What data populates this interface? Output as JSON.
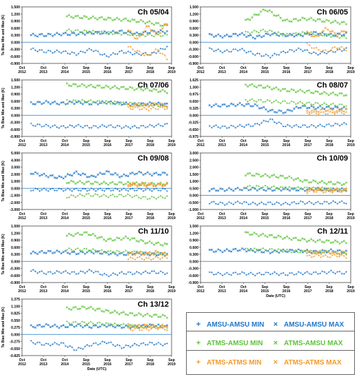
{
  "figure": {
    "ylabel": "Ta Bias Min and Max (K)",
    "xlabel": "Date (UTC)",
    "colors": {
      "amsu_amsu": "#1f77c8",
      "atms_amsu": "#5fc23c",
      "atms_atms": "#f39a2a"
    }
  },
  "legend": {
    "items": [
      {
        "marker": "+",
        "label": "AMSU-AMSU MIN",
        "color": "#1f77c8"
      },
      {
        "marker": "×",
        "label": "AMSU-AMSU MAX",
        "color": "#1f77c8"
      },
      {
        "marker": "+",
        "label": "ATMS-AMSU MIN",
        "color": "#5fc23c"
      },
      {
        "marker": "×",
        "label": "ATMS-AMSU MAX",
        "color": "#5fc23c"
      },
      {
        "marker": "+",
        "label": "ATMS-ATMS MIN",
        "color": "#f39a2a"
      },
      {
        "marker": "×",
        "label": "ATMS-ATMS MAX",
        "color": "#f39a2a"
      }
    ]
  },
  "chart_data": [
    {
      "type": "scatter",
      "title": "Ch 05/04",
      "xlabel": "",
      "ylabel": "Ta Bias Min and Max (K)",
      "show_ylabel": true,
      "ylim": [
        -0.9,
        1.5
      ],
      "yticks": [
        "1.500",
        "1.200",
        "0.900",
        "0.600",
        "0.300",
        "0.000",
        "-0.300",
        "-0.600",
        "-0.900"
      ],
      "xticks": [
        "Oct\n2012",
        "Oct\n2013",
        "Oct\n2014",
        "Sep\n2015",
        "Sep\n2016",
        "Sep\n2017",
        "Sep\n2018",
        "Sep\n2019"
      ],
      "series": {
        "aa_max": [
          0.3,
          0.3,
          0.35,
          0.35,
          0.4,
          0.4,
          0.45,
          0.35,
          0.45,
          0.45
        ],
        "aa_min": [
          -0.3,
          -0.4,
          -0.4,
          -0.5,
          -0.3,
          -0.6,
          -0.4,
          -0.5,
          -0.5,
          -0.2
        ],
        "am_max": [
          1.1,
          1.05,
          1.0,
          0.95,
          0.85,
          0.7
        ],
        "am_min": [
          0.5,
          0.45,
          0.4,
          0.35,
          0.3,
          0.3
        ],
        "tt_max": [
          0.5,
          0.1,
          0.7,
          0.3,
          0.8
        ],
        "tt_min": [
          -0.2,
          -0.4,
          -0.6,
          -0.3,
          -0.7
        ]
      }
    },
    {
      "type": "scatter",
      "title": "Ch 06/05",
      "xlabel": "",
      "ylabel": "",
      "show_ylabel": false,
      "ylim": [
        -0.9,
        1.5
      ],
      "yticks": [
        "1.500",
        "1.200",
        "0.900",
        "0.600",
        "0.300",
        "0.000",
        "-0.300",
        "-0.600",
        "-0.900"
      ],
      "xticks": [
        "Oct\n2012",
        "Oct\n2013",
        "Oct\n2014",
        "Sep\n2015",
        "Sep\n2016",
        "Sep\n2017",
        "Sep\n2018",
        "Sep\n2019"
      ],
      "series": {
        "aa_max": [
          0.3,
          0.25,
          0.35,
          0.2,
          0.35,
          0.3,
          0.3,
          0.4,
          0.3,
          0.35
        ],
        "aa_min": [
          -0.3,
          -0.4,
          -0.3,
          -0.5,
          -0.6,
          -0.4,
          -0.3,
          -0.5,
          -0.4,
          -0.3
        ],
        "am_max": [
          0.9,
          1.4,
          0.9,
          1.0,
          0.9,
          0.8
        ],
        "am_min": [
          0.4,
          0.5,
          0.3,
          0.4,
          0.3,
          0.2
        ],
        "tt_max": [
          0.4,
          0.2,
          0.6,
          0.3,
          0.5
        ],
        "tt_min": [
          -0.1,
          -0.3,
          -0.4,
          -0.2,
          -0.3
        ]
      }
    },
    {
      "type": "scatter",
      "title": "Ch 07/06",
      "xlabel": "",
      "ylabel": "Ta Bias Min and Max (K)",
      "show_ylabel": true,
      "ylim": [
        -0.9,
        1.5
      ],
      "yticks": [
        "1.500",
        "1.200",
        "0.900",
        "0.600",
        "0.300",
        "0.000",
        "-0.300",
        "-0.600",
        "-0.900"
      ],
      "xticks": [
        "Oct\n2012",
        "Oct\n2013",
        "Oct\n2014",
        "Sep\n2015",
        "Sep\n2016",
        "Sep\n2017",
        "Sep\n2018",
        "Sep\n2019"
      ],
      "series": {
        "aa_max": [
          0.5,
          0.55,
          0.5,
          0.55,
          0.5,
          0.55,
          0.5,
          0.45,
          0.5,
          0.45
        ],
        "aa_min": [
          -0.4,
          -0.45,
          -0.5,
          -0.45,
          -0.5,
          -0.45,
          -0.5,
          -0.5,
          -0.45,
          -0.4
        ],
        "am_max": [
          1.3,
          1.25,
          1.2,
          1.15,
          1.1,
          1.0
        ],
        "am_min": [
          0.6,
          0.6,
          0.55,
          0.5,
          0.45,
          0.4
        ],
        "tt_max": [
          0.4,
          0.45,
          0.4,
          0.5,
          0.4
        ],
        "tt_min": [
          0.3,
          0.3,
          0.25,
          0.3,
          0.3
        ]
      }
    },
    {
      "type": "scatter",
      "title": "Ch 08/07",
      "xlabel": "",
      "ylabel": "",
      "show_ylabel": false,
      "ylim": [
        -0.975,
        1.625
      ],
      "yticks": [
        "1.625",
        "1.300",
        "0.975",
        "0.650",
        "0.325",
        "0.000",
        "-0.325",
        "-0.650",
        "-0.975"
      ],
      "xticks": [
        "Oct\n2012",
        "Oct\n2013",
        "Oct\n2014",
        "Sep\n2015",
        "Sep\n2016",
        "Sep\n2017",
        "Sep\n2018",
        "Sep\n2019"
      ],
      "series": {
        "aa_max": [
          0.45,
          0.45,
          0.5,
          0.45,
          0.2,
          0.15,
          0.4,
          0.35,
          0.35,
          0.3
        ],
        "aa_min": [
          -0.5,
          -0.55,
          -0.5,
          -0.45,
          -0.2,
          -0.5,
          -0.5,
          -0.5,
          -0.45,
          -0.4
        ],
        "am_max": [
          1.4,
          1.3,
          1.15,
          1.1,
          1.0,
          0.95
        ],
        "am_min": [
          0.7,
          0.65,
          0.6,
          0.55,
          0.5,
          0.45
        ],
        "tt_max": [
          0.2,
          0.2,
          0.25,
          0.2,
          0.25
        ],
        "tt_min": [
          0.1,
          0.1,
          0.1,
          0.12,
          0.12
        ]
      }
    },
    {
      "type": "scatter",
      "title": "Ch 09/08",
      "xlabel": "",
      "ylabel": "Ta Bias Min and Max (K)",
      "show_ylabel": true,
      "ylim": [
        -3.0,
        5.0
      ],
      "yticks": [
        "5.000",
        "4.000",
        "3.000",
        "2.000",
        "1.000",
        "0.000",
        "-1.000",
        "-2.000",
        "-3.000"
      ],
      "xticks": [
        "Oct\n2012",
        "Oct\n2013",
        "Oct\n2014",
        "Sep\n2015",
        "Sep\n2016",
        "Sep\n2017",
        "Sep\n2018",
        "Sep\n2019"
      ],
      "series": {
        "aa_max": [
          2.2,
          1.8,
          1.5,
          2.2,
          1.6,
          2.3,
          1.7,
          2.2,
          2.0,
          2.1
        ],
        "aa_min": [
          -0.2,
          -0.2,
          -0.2,
          -0.2,
          -0.2,
          -0.2,
          -0.2,
          -0.2,
          -0.2,
          -0.2
        ],
        "am_max": [
          0.9,
          0.8,
          0.7,
          0.7,
          0.6,
          0.6
        ],
        "am_min": [
          -1.2,
          -0.9,
          -1.1,
          -1.0,
          -1.4,
          -1.2
        ],
        "tt_max": [
          0.6,
          0.6,
          0.6,
          0.5,
          0.6
        ],
        "tt_min": [
          0.4,
          0.4,
          0.4,
          0.4,
          0.4
        ]
      }
    },
    {
      "type": "scatter",
      "title": "Ch 10/09",
      "xlabel": "",
      "ylabel": "",
      "show_ylabel": false,
      "ylim": [
        -1.0,
        3.0
      ],
      "yticks": [
        "3.000",
        "2.500",
        "2.000",
        "1.500",
        "1.000",
        "0.500",
        "0.000",
        "-0.500",
        "-1.000"
      ],
      "xticks": [
        "Oct\n2012",
        "Oct\n2013",
        "Oct\n2014",
        "Sep\n2015",
        "Sep\n2016",
        "Sep\n2017",
        "Sep\n2018",
        "Sep\n2019"
      ],
      "series": {
        "aa_max": [
          0.4,
          0.4,
          0.45,
          0.45,
          0.4,
          0.45,
          0.4,
          0.45,
          0.4,
          0.4
        ],
        "aa_min": [
          -0.5,
          -0.6,
          -0.5,
          -0.6,
          -0.55,
          -0.6,
          -0.5,
          -0.55,
          -0.5,
          -0.5
        ],
        "am_max": [
          1.5,
          1.4,
          1.3,
          1.0,
          0.9,
          0.8
        ],
        "am_min": [
          0.6,
          0.6,
          0.5,
          0.5,
          0.45,
          0.4
        ],
        "tt_max": [
          0.4,
          0.45,
          0.4,
          0.4,
          0.4
        ],
        "tt_min": [
          0.25,
          0.3,
          0.25,
          0.3,
          0.3
        ]
      }
    },
    {
      "type": "scatter",
      "title": "Ch 11/10",
      "xlabel": "",
      "ylabel": "Ta Bias Min and Max (K)",
      "show_ylabel": true,
      "ylim": [
        -0.9,
        1.5
      ],
      "yticks": [
        "1.500",
        "1.200",
        "0.900",
        "0.600",
        "0.300",
        "0.000",
        "-0.300",
        "-0.600",
        "-0.900"
      ],
      "xticks": [
        "Oct\n2012",
        "Oct\n2013",
        "Oct\n2014",
        "Sep\n2015",
        "Sep\n2016",
        "Sep\n2017",
        "Sep\n2018",
        "Sep\n2019"
      ],
      "series": {
        "aa_max": [
          0.35,
          0.4,
          0.4,
          0.35,
          0.4,
          0.35,
          0.3,
          0.35,
          0.3,
          0.3
        ],
        "aa_min": [
          -0.4,
          -0.5,
          -0.45,
          -0.5,
          -0.4,
          -0.6,
          -0.5,
          -0.5,
          -0.45,
          -0.5
        ],
        "am_max": [
          1.1,
          1.2,
          0.9,
          1.0,
          0.8,
          0.7
        ],
        "am_min": [
          0.5,
          0.5,
          0.4,
          0.4,
          0.35,
          0.3
        ],
        "tt_max": [
          0.3,
          0.35,
          0.3,
          0.4,
          0.3
        ],
        "tt_min": [
          0.1,
          0.15,
          0.1,
          0.15,
          0.15
        ]
      }
    },
    {
      "type": "scatter",
      "title": "Ch 12/11",
      "xlabel": "Date (UTC)",
      "ylabel": "",
      "show_ylabel": false,
      "ylim": [
        -0.9,
        1.5
      ],
      "yticks": [
        "1.500",
        "1.200",
        "0.900",
        "0.600",
        "0.300",
        "0.000",
        "-0.300",
        "-0.600",
        "-0.900"
      ],
      "xticks": [
        "Oct\n2012",
        "Oct\n2013",
        "Oct\n2014",
        "Sep\n2015",
        "Sep\n2016",
        "Sep\n2017",
        "Sep\n2018",
        "Sep\n2019"
      ],
      "series": {
        "aa_max": [
          0.45,
          0.45,
          0.5,
          0.45,
          0.4,
          0.45,
          0.45,
          0.4,
          0.45,
          0.4
        ],
        "aa_min": [
          -0.5,
          -0.55,
          -0.5,
          -0.55,
          -0.5,
          -0.55,
          -0.5,
          -0.5,
          -0.45,
          -0.5
        ],
        "am_max": [
          1.2,
          1.1,
          1.0,
          0.9,
          0.85,
          0.8
        ],
        "am_min": [
          0.5,
          0.5,
          0.45,
          0.4,
          0.4,
          0.3
        ],
        "tt_max": [
          0.4,
          0.35,
          0.4,
          0.35,
          0.4
        ],
        "tt_min": [
          0.2,
          0.25,
          0.2,
          0.25,
          0.2
        ]
      }
    },
    {
      "type": "scatter",
      "title": "Ch 13/12",
      "xlabel": "Date (UTC)",
      "ylabel": "Ta Bias Min and Max (K)",
      "show_ylabel": true,
      "ylim": [
        -0.825,
        1.375
      ],
      "yticks": [
        "1.375",
        "1.100",
        "0.825",
        "0.550",
        "0.275",
        "0.000",
        "-0.275",
        "-0.550",
        "-0.825"
      ],
      "xticks": [
        "Oct\n2012",
        "Oct\n2013",
        "Oct\n2014",
        "Sep\n2015",
        "Sep\n2016",
        "Sep\n2017",
        "Sep\n2018",
        "Sep\n2019"
      ],
      "series": {
        "aa_max": [
          0.3,
          0.35,
          0.3,
          0.35,
          0.3,
          0.35,
          0.3,
          0.3,
          0.35,
          0.3
        ],
        "aa_min": [
          -0.3,
          -0.4,
          -0.35,
          -0.6,
          -0.4,
          -0.3,
          -0.5,
          -0.4,
          -0.35,
          -0.4
        ],
        "am_max": [
          1.0,
          1.05,
          0.9,
          0.8,
          0.75,
          0.7
        ],
        "am_min": [
          0.45,
          0.45,
          0.4,
          0.35,
          0.3,
          0.3
        ],
        "tt_max": [
          0.35,
          0.3,
          0.35,
          0.3,
          0.35
        ],
        "tt_min": [
          0.2,
          0.2,
          0.2,
          0.25,
          0.2
        ]
      }
    }
  ]
}
